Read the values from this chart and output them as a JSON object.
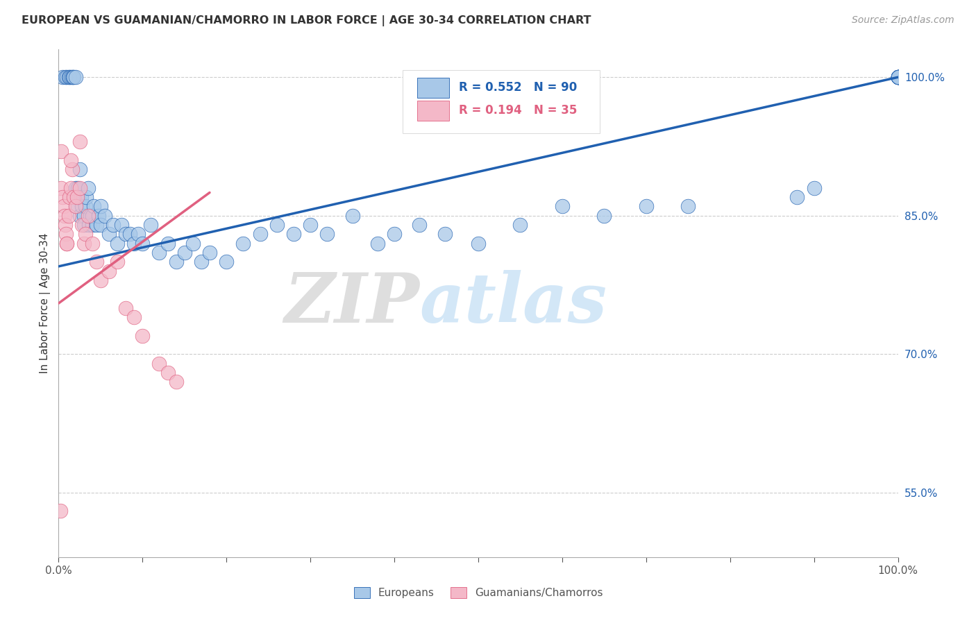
{
  "title": "EUROPEAN VS GUAMANIAN/CHAMORRO IN LABOR FORCE | AGE 30-34 CORRELATION CHART",
  "source": "Source: ZipAtlas.com",
  "ylabel": "In Labor Force | Age 30-34",
  "watermark_zip": "ZIP",
  "watermark_atlas": "atlas",
  "blue_R": 0.552,
  "blue_N": 90,
  "pink_R": 0.194,
  "pink_N": 35,
  "blue_color": "#a8c8e8",
  "pink_color": "#f4b8c8",
  "blue_line_color": "#2060b0",
  "pink_line_color": "#e06080",
  "y_ticks": [
    0.55,
    0.7,
    0.85,
    1.0
  ],
  "y_tick_labels": [
    "55.0%",
    "70.0%",
    "85.0%",
    "100.0%"
  ],
  "xlim": [
    0.0,
    1.0
  ],
  "ylim": [
    0.48,
    1.03
  ],
  "blue_line_x0": 0.0,
  "blue_line_y0": 0.795,
  "blue_line_x1": 1.0,
  "blue_line_y1": 1.0,
  "pink_line_x0": 0.0,
  "pink_line_x1": 0.18,
  "pink_line_y0": 0.755,
  "pink_line_y1": 0.875,
  "blue_x": [
    0.005,
    0.008,
    0.01,
    0.012,
    0.013,
    0.015,
    0.016,
    0.017,
    0.018,
    0.02,
    0.02,
    0.02,
    0.022,
    0.023,
    0.025,
    0.025,
    0.027,
    0.028,
    0.03,
    0.03,
    0.032,
    0.033,
    0.035,
    0.036,
    0.038,
    0.04,
    0.04,
    0.042,
    0.045,
    0.048,
    0.05,
    0.05,
    0.055,
    0.06,
    0.065,
    0.07,
    0.075,
    0.08,
    0.085,
    0.09,
    0.095,
    0.1,
    0.11,
    0.12,
    0.13,
    0.14,
    0.15,
    0.16,
    0.17,
    0.18,
    0.2,
    0.22,
    0.24,
    0.26,
    0.28,
    0.3,
    0.32,
    0.35,
    0.38,
    0.4,
    0.43,
    0.46,
    0.5,
    0.55,
    0.6,
    0.65,
    0.7,
    0.75,
    0.88,
    0.9,
    1.0,
    1.0,
    1.0,
    1.0,
    1.0,
    1.0,
    1.0,
    1.0,
    1.0,
    1.0
  ],
  "blue_y": [
    1.0,
    1.0,
    1.0,
    1.0,
    1.0,
    1.0,
    1.0,
    1.0,
    1.0,
    1.0,
    0.88,
    0.86,
    0.87,
    0.88,
    0.9,
    0.85,
    0.87,
    0.86,
    0.85,
    0.84,
    0.86,
    0.87,
    0.88,
    0.84,
    0.85,
    0.84,
    0.85,
    0.86,
    0.84,
    0.85,
    0.84,
    0.86,
    0.85,
    0.83,
    0.84,
    0.82,
    0.84,
    0.83,
    0.83,
    0.82,
    0.83,
    0.82,
    0.84,
    0.81,
    0.82,
    0.8,
    0.81,
    0.82,
    0.8,
    0.81,
    0.8,
    0.82,
    0.83,
    0.84,
    0.83,
    0.84,
    0.83,
    0.85,
    0.82,
    0.83,
    0.84,
    0.83,
    0.82,
    0.84,
    0.86,
    0.85,
    0.86,
    0.86,
    0.87,
    0.88,
    1.0,
    1.0,
    1.0,
    1.0,
    1.0,
    1.0,
    1.0,
    1.0,
    1.0,
    1.0
  ],
  "pink_x": [
    0.003,
    0.005,
    0.006,
    0.007,
    0.008,
    0.009,
    0.01,
    0.01,
    0.012,
    0.013,
    0.015,
    0.016,
    0.018,
    0.02,
    0.022,
    0.025,
    0.028,
    0.03,
    0.032,
    0.035,
    0.04,
    0.045,
    0.05,
    0.06,
    0.07,
    0.08,
    0.09,
    0.1,
    0.12,
    0.13,
    0.14,
    0.002,
    0.003,
    0.015,
    0.025
  ],
  "pink_y": [
    0.88,
    0.87,
    0.86,
    0.85,
    0.84,
    0.83,
    0.82,
    0.82,
    0.85,
    0.87,
    0.88,
    0.9,
    0.87,
    0.86,
    0.87,
    0.88,
    0.84,
    0.82,
    0.83,
    0.85,
    0.82,
    0.8,
    0.78,
    0.79,
    0.8,
    0.75,
    0.74,
    0.72,
    0.69,
    0.68,
    0.67,
    0.53,
    0.92,
    0.91,
    0.93
  ]
}
